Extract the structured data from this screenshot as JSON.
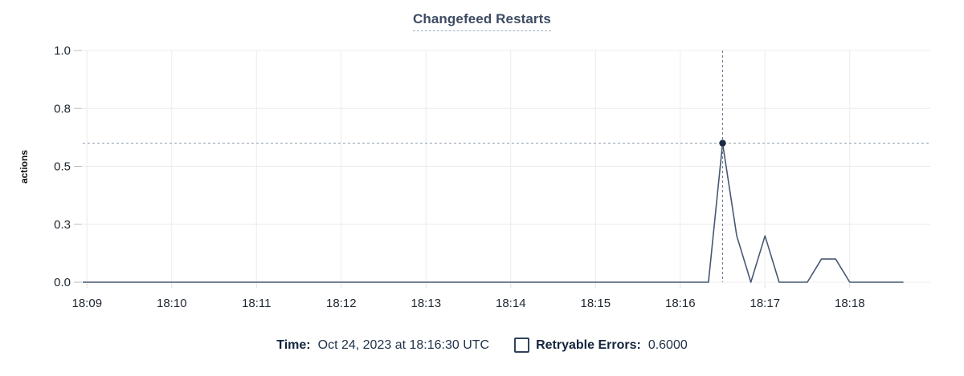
{
  "header": {
    "title": "Changefeed Restarts"
  },
  "chart_data": {
    "type": "line",
    "title": "Changefeed Restarts",
    "xlabel": "",
    "ylabel": "actions",
    "ylim": [
      0,
      1.0
    ],
    "x_domain": [
      "18:08:57",
      "18:18:57"
    ],
    "grid": true,
    "y_ticks": [
      {
        "value": 0,
        "label": "0.0"
      },
      {
        "value": 0.25,
        "label": "0.3"
      },
      {
        "value": 0.5,
        "label": "0.5"
      },
      {
        "value": 0.75,
        "label": "0.8"
      },
      {
        "value": 1,
        "label": "1.0"
      }
    ],
    "x_ticks": [
      "18:09",
      "18:10",
      "18:11",
      "18:12",
      "18:13",
      "18:14",
      "18:15",
      "18:16",
      "18:17",
      "18:18"
    ],
    "series": [
      {
        "name": "Retryable Errors",
        "color": "#475872",
        "points": [
          {
            "t": "18:08:57",
            "v": 0
          },
          {
            "t": "18:16:20",
            "v": 0
          },
          {
            "t": "18:16:30",
            "v": 0.6
          },
          {
            "t": "18:16:40",
            "v": 0.2
          },
          {
            "t": "18:16:50",
            "v": 0
          },
          {
            "t": "18:17:00",
            "v": 0.2
          },
          {
            "t": "18:17:10",
            "v": 0
          },
          {
            "t": "18:17:20",
            "v": 0
          },
          {
            "t": "18:17:30",
            "v": 0
          },
          {
            "t": "18:17:40",
            "v": 0.1
          },
          {
            "t": "18:17:50",
            "v": 0.1
          },
          {
            "t": "18:18:00",
            "v": 0
          },
          {
            "t": "18:18:10",
            "v": 0
          },
          {
            "t": "18:18:20",
            "v": 0
          },
          {
            "t": "18:18:30",
            "v": 0
          },
          {
            "t": "18:18:38",
            "v": 0
          }
        ]
      }
    ],
    "hover": {
      "time": "18:16:30",
      "value": 0.6
    },
    "legend_position": "bottom"
  },
  "legend": {
    "time_label": "Time:",
    "time_value": "Oct 24, 2023 at 18:16:30 UTC",
    "series_label": "Retryable Errors:",
    "series_value": "0.6000",
    "checkbox_checked": false
  },
  "colors": {
    "title": "#3e4c63",
    "series_line": "#475872",
    "hover_dot": "#1c2b45",
    "crosshair_vertical": "#66788c",
    "crosshair_horizontal": "#8a99a8",
    "gridline": "#ececec",
    "axis_tick": "#bcbcbc",
    "tick_label": "#202830",
    "legend_text": "#14243c"
  }
}
